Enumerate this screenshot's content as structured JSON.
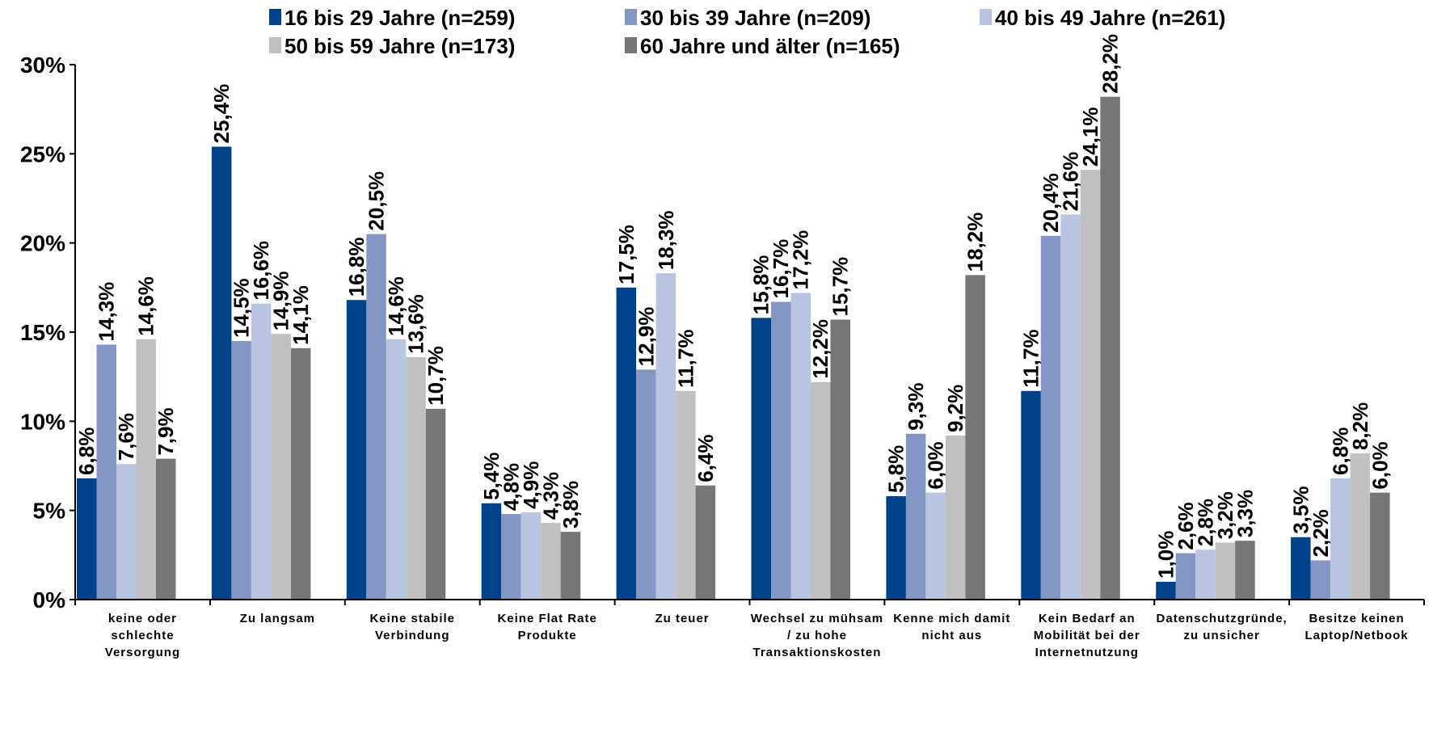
{
  "chart_data": {
    "type": "bar",
    "categories": [
      [
        "keine oder",
        "schlechte",
        "Versorgung"
      ],
      [
        "Zu langsam"
      ],
      [
        "Keine stabile",
        "Verbindung"
      ],
      [
        "Keine Flat Rate",
        "Produkte"
      ],
      [
        "Zu teuer"
      ],
      [
        "Wechsel zu mühsam",
        "/ zu hohe",
        "Transaktionskosten"
      ],
      [
        "Kenne mich damit",
        "nicht aus"
      ],
      [
        "Kein Bedarf an",
        "Mobilität bei der",
        "Internetnutzung"
      ],
      [
        "Datenschutzgründe,",
        "zu unsicher"
      ],
      [
        "Besitze keinen",
        "Laptop/Netbook"
      ]
    ],
    "series": [
      {
        "name": "16 bis 29 Jahre (n=259)",
        "color": "#00428a",
        "values": [
          6.8,
          25.4,
          16.8,
          5.4,
          17.5,
          15.8,
          5.8,
          11.7,
          1.0,
          3.5
        ],
        "labels": [
          "6,8%",
          "25,4%",
          "16,8%",
          "5,4%",
          "17,5%",
          "15,8%",
          "5,8%",
          "11,7%",
          "1,0%",
          "3,5%"
        ]
      },
      {
        "name": "30 bis 39 Jahre (n=209)",
        "color": "#8496c4",
        "values": [
          14.3,
          14.5,
          20.5,
          4.8,
          12.9,
          16.7,
          9.3,
          20.4,
          2.6,
          2.2
        ],
        "labels": [
          "14,3%",
          "14,5%",
          "20,5%",
          "4,8%",
          "12,9%",
          "16,7%",
          "9,3%",
          "20,4%",
          "2,6%",
          "2,2%"
        ]
      },
      {
        "name": "40 bis 49 Jahre (n=261)",
        "color": "#b8c4e0",
        "values": [
          7.6,
          16.6,
          14.6,
          4.9,
          18.3,
          17.2,
          6.0,
          21.6,
          2.8,
          6.8
        ],
        "labels": [
          "7,6%",
          "16,6%",
          "14,6%",
          "4,9%",
          "18,3%",
          "17,2%",
          "6,0%",
          "21,6%",
          "2,8%",
          "6,8%"
        ]
      },
      {
        "name": "50 bis 59 Jahre (n=173)",
        "color": "#c0c0c0",
        "values": [
          14.6,
          14.9,
          13.6,
          4.3,
          11.7,
          12.2,
          9.2,
          24.1,
          3.2,
          8.2
        ],
        "labels": [
          "14,6%",
          "14,9%",
          "13,6%",
          "4,3%",
          "11,7%",
          "12,2%",
          "9,2%",
          "24,1%",
          "3,2%",
          "8,2%"
        ]
      },
      {
        "name": "60 Jahre und älter (n=165)",
        "color": "#767676",
        "values": [
          7.9,
          14.1,
          10.7,
          3.8,
          6.4,
          15.7,
          18.2,
          28.2,
          3.3,
          6.0
        ],
        "labels": [
          "7,9%",
          "14,1%",
          "10,7%",
          "3,8%",
          "6,4%",
          "15,7%",
          "18,2%",
          "28,2%",
          "3,3%",
          "6,0%"
        ]
      }
    ],
    "ylim": [
      0,
      30
    ],
    "yticks": [
      0,
      5,
      10,
      15,
      20,
      25,
      30
    ],
    "ytick_labels": [
      "0%",
      "5%",
      "10%",
      "15%",
      "20%",
      "25%",
      "30%"
    ],
    "legend_placement": "top",
    "grid": false
  }
}
